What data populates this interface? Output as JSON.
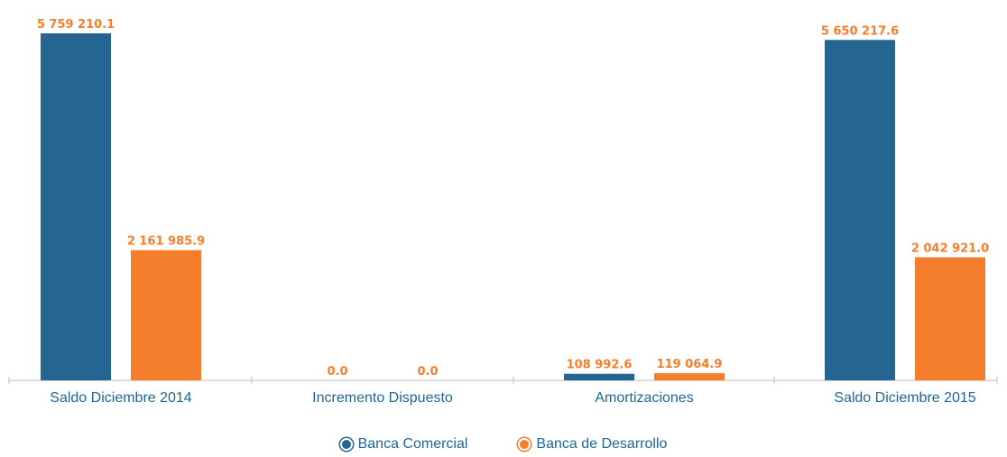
{
  "chart_data": {
    "type": "bar",
    "categories": [
      "Saldo Diciembre 2014",
      "Incremento Dispuesto",
      "Amortizaciones",
      "Saldo Diciembre 2015"
    ],
    "series": [
      {
        "name": "Banca Comercial",
        "color": "#246592",
        "values": [
          5759210.1,
          0.0,
          108992.6,
          5650217.6
        ],
        "labels": [
          "5 759 210.1",
          "0.0",
          "108 992.6",
          "5 650 217.6"
        ]
      },
      {
        "name": "Banca de Desarrollo",
        "color": "#f47e2b",
        "values": [
          2161985.9,
          0.0,
          119064.9,
          2042921.0
        ],
        "labels": [
          "2 161 985.9",
          "0.0",
          "119 064.9",
          "2 042 921.0"
        ]
      }
    ],
    "label_color": "#f47e2b",
    "axis_label_color": "#1f6696",
    "legend_position": "bottom-center"
  }
}
